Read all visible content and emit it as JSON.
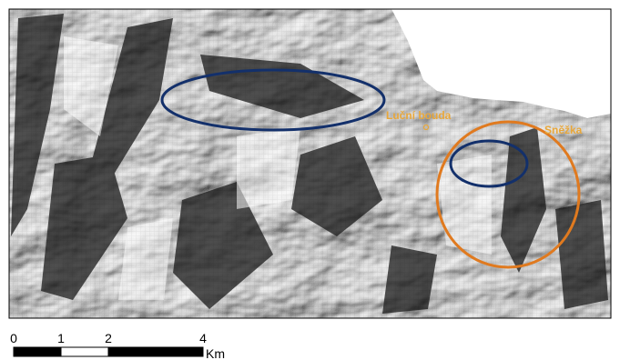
{
  "map": {
    "labels": [
      {
        "text": "Luční bouda"
      },
      {
        "text": "Sněžka"
      }
    ],
    "scale_bar": {
      "ticks": [
        0,
        1,
        2,
        4
      ],
      "unit": "Km"
    }
  }
}
